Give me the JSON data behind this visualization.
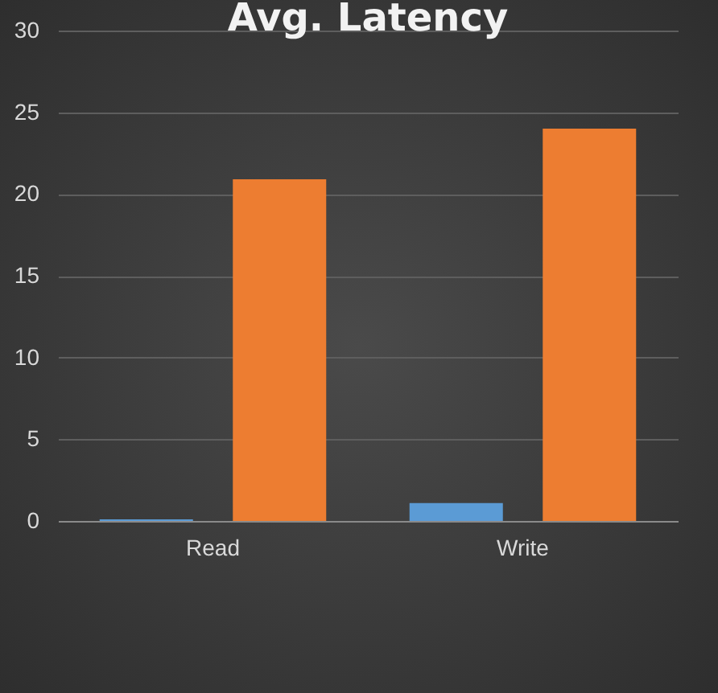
{
  "chart_data": {
    "type": "bar",
    "title": "Avg. Latency",
    "categories": [
      "Read",
      "Write"
    ],
    "series": [
      {
        "color": "#5b9bd5",
        "values": [
          0.1,
          1.1
        ]
      },
      {
        "color": "#ed7d31",
        "values": [
          20.9,
          24
        ]
      }
    ],
    "ylim": [
      0,
      30
    ],
    "yticks": [
      0,
      5,
      10,
      15,
      20,
      25,
      30
    ],
    "grid": "y"
  }
}
